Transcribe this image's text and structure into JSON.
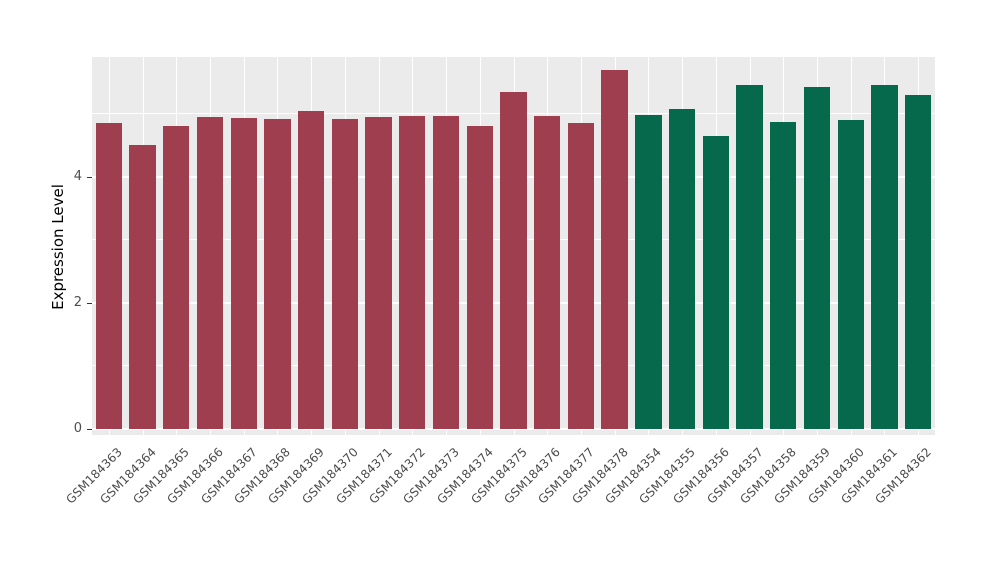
{
  "chart_data": {
    "type": "bar",
    "title": "",
    "xlabel": "",
    "ylabel": "Expression Level",
    "ylim": [
      0,
      5.9
    ],
    "yticks": [
      0,
      2,
      4
    ],
    "minor_gridlines": [
      1,
      3,
      5
    ],
    "grid": "white major and minor horizontal lines plus vertical category lines on gray panel",
    "legend_position": "none",
    "panel_background": "#EBEBEB",
    "categories": [
      "GSM184363",
      "GSM184364",
      "GSM184365",
      "GSM184366",
      "GSM184367",
      "GSM184368",
      "GSM184369",
      "GSM184370",
      "GSM184371",
      "GSM184372",
      "GSM184373",
      "GSM184374",
      "GSM184375",
      "GSM184376",
      "GSM184377",
      "GSM184378",
      "GSM184354",
      "GSM184355",
      "GSM184356",
      "GSM184357",
      "GSM184358",
      "GSM184359",
      "GSM184360",
      "GSM184361",
      "GSM184362"
    ],
    "values": [
      4.85,
      4.5,
      4.8,
      4.95,
      4.93,
      4.92,
      5.05,
      4.92,
      4.95,
      4.96,
      4.97,
      4.8,
      5.35,
      4.96,
      4.85,
      5.7,
      4.98,
      5.08,
      4.65,
      5.45,
      4.87,
      5.42,
      4.9,
      5.45,
      5.3
    ],
    "group_of_bar": [
      0,
      0,
      0,
      0,
      0,
      0,
      0,
      0,
      0,
      0,
      0,
      0,
      0,
      0,
      0,
      0,
      1,
      1,
      1,
      1,
      1,
      1,
      1,
      1,
      1
    ],
    "groups": [
      {
        "name": "GSM184363-GSM184378",
        "color": "#9E3E4E"
      },
      {
        "name": "GSM184354-GSM184362",
        "color": "#07694C"
      }
    ]
  }
}
